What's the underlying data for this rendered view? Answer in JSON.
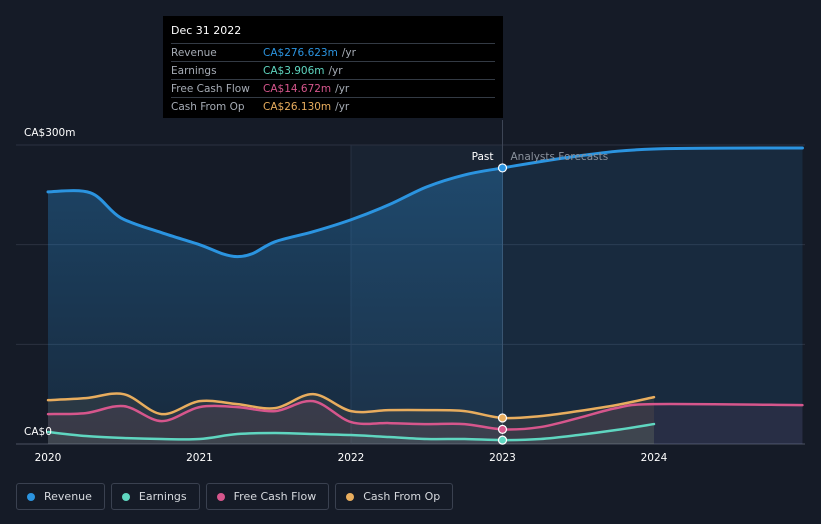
{
  "chart_data": {
    "type": "area",
    "x_range": [
      2019.8,
      2024.98
    ],
    "ylim": [
      0,
      300
    ],
    "y_tick_labels": [
      "CA$300m",
      "CA$0"
    ],
    "x_tick_labels": [
      "2020",
      "2021",
      "2022",
      "2023",
      "2024"
    ],
    "x_ticks": [
      2020,
      2021,
      2022,
      2023,
      2024
    ],
    "past_label": "Past",
    "forecast_label": "Analysts Forecasts",
    "divider_x": 2023,
    "highlight_start_x": 2022,
    "series": [
      {
        "name": "Revenue",
        "color": "#2b94e0",
        "points": [
          [
            2020,
            253
          ],
          [
            2020.28,
            252
          ],
          [
            2020.48,
            227
          ],
          [
            2020.75,
            212
          ],
          [
            2021,
            200
          ],
          [
            2021.15,
            191
          ],
          [
            2021.25,
            188
          ],
          [
            2021.35,
            191
          ],
          [
            2021.5,
            203
          ],
          [
            2021.75,
            213
          ],
          [
            2022,
            225
          ],
          [
            2022.25,
            240
          ],
          [
            2022.5,
            258
          ],
          [
            2022.75,
            270
          ],
          [
            2023,
            277
          ],
          [
            2023.5,
            289
          ],
          [
            2024,
            296
          ],
          [
            2024.98,
            297
          ]
        ]
      },
      {
        "name": "Earnings",
        "color": "#5fd6c0",
        "points": [
          [
            2020,
            12
          ],
          [
            2020.25,
            8
          ],
          [
            2020.5,
            6
          ],
          [
            2020.75,
            5
          ],
          [
            2021,
            5
          ],
          [
            2021.25,
            10
          ],
          [
            2021.5,
            11
          ],
          [
            2021.75,
            10
          ],
          [
            2022,
            9
          ],
          [
            2022.25,
            7
          ],
          [
            2022.5,
            5
          ],
          [
            2022.75,
            5
          ],
          [
            2023,
            3.906
          ],
          [
            2023.25,
            5
          ],
          [
            2023.5,
            9
          ],
          [
            2023.75,
            14
          ],
          [
            2024,
            20
          ]
        ]
      },
      {
        "name": "Free Cash Flow",
        "color": "#d6568c",
        "points": [
          [
            2020,
            30
          ],
          [
            2020.25,
            31
          ],
          [
            2020.5,
            38
          ],
          [
            2020.75,
            23
          ],
          [
            2021,
            37
          ],
          [
            2021.25,
            37
          ],
          [
            2021.5,
            33
          ],
          [
            2021.75,
            43
          ],
          [
            2022,
            22
          ],
          [
            2022.25,
            21
          ],
          [
            2022.5,
            20
          ],
          [
            2022.75,
            20
          ],
          [
            2023,
            14.672
          ],
          [
            2023.25,
            17
          ],
          [
            2023.5,
            26
          ],
          [
            2023.75,
            36
          ],
          [
            2024,
            40
          ],
          [
            2024.98,
            39
          ]
        ]
      },
      {
        "name": "Cash From Op",
        "color": "#e8ad5e",
        "points": [
          [
            2020,
            44
          ],
          [
            2020.25,
            46
          ],
          [
            2020.5,
            50
          ],
          [
            2020.75,
            30
          ],
          [
            2021,
            43
          ],
          [
            2021.25,
            40
          ],
          [
            2021.5,
            36
          ],
          [
            2021.75,
            50
          ],
          [
            2022,
            33
          ],
          [
            2022.25,
            34
          ],
          [
            2022.5,
            34
          ],
          [
            2022.75,
            33
          ],
          [
            2023,
            26.13
          ],
          [
            2023.25,
            28
          ],
          [
            2023.5,
            33
          ],
          [
            2023.75,
            39
          ],
          [
            2024,
            47
          ]
        ]
      }
    ]
  },
  "tooltip": {
    "date": "Dec 31 2022",
    "rows": [
      {
        "label": "Revenue",
        "value": "CA$276.623m",
        "unit": "/yr",
        "color": "#2b94e0"
      },
      {
        "label": "Earnings",
        "value": "CA$3.906m",
        "unit": "/yr",
        "color": "#5fd6c0"
      },
      {
        "label": "Free Cash Flow",
        "value": "CA$14.672m",
        "unit": "/yr",
        "color": "#d6568c"
      },
      {
        "label": "Cash From Op",
        "value": "CA$26.130m",
        "unit": "/yr",
        "color": "#e8ad5e"
      }
    ]
  },
  "legend": [
    {
      "label": "Revenue",
      "color": "#2b94e0"
    },
    {
      "label": "Earnings",
      "color": "#5fd6c0"
    },
    {
      "label": "Free Cash Flow",
      "color": "#d6568c"
    },
    {
      "label": "Cash From Op",
      "color": "#e8ad5e"
    }
  ]
}
